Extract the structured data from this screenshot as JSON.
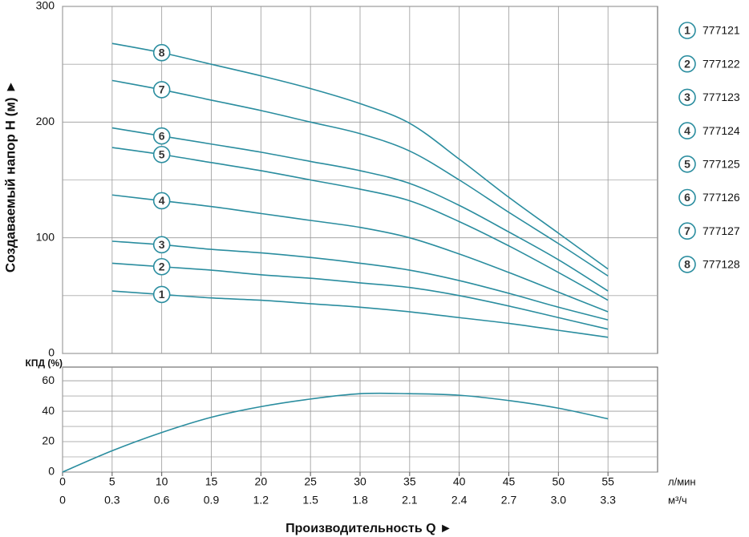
{
  "chart_data": [
    {
      "type": "line",
      "ylabel": "Создаваемый напор H (м) ►",
      "x": [
        5,
        10,
        15,
        20,
        25,
        30,
        35,
        40,
        45,
        50,
        55
      ],
      "xlim": [
        0,
        60
      ],
      "ylim": [
        0,
        300
      ],
      "yticks": [
        0,
        100,
        200,
        300
      ],
      "yminor": [
        50,
        150,
        250
      ],
      "marker_x": 10,
      "series": [
        {
          "name": "777121",
          "label": "1",
          "color": "#2a8d9f",
          "values": [
            54,
            51,
            48,
            46,
            43,
            40,
            36,
            31,
            26,
            20,
            14
          ]
        },
        {
          "name": "777122",
          "label": "2",
          "color": "#2a8d9f",
          "values": [
            78,
            75,
            72,
            68,
            65,
            61,
            57,
            50,
            41,
            31,
            21
          ]
        },
        {
          "name": "777123",
          "label": "3",
          "color": "#2a8d9f",
          "values": [
            97,
            94,
            90,
            87,
            83,
            78,
            72,
            63,
            52,
            40,
            29
          ]
        },
        {
          "name": "777124",
          "label": "4",
          "color": "#2a8d9f",
          "values": [
            137,
            132,
            127,
            121,
            115,
            109,
            100,
            86,
            70,
            53,
            36
          ]
        },
        {
          "name": "777125",
          "label": "5",
          "color": "#2a8d9f",
          "values": [
            178,
            172,
            165,
            158,
            150,
            142,
            132,
            114,
            93,
            70,
            46
          ]
        },
        {
          "name": "777126",
          "label": "6",
          "color": "#2a8d9f",
          "values": [
            195,
            188,
            181,
            174,
            166,
            158,
            147,
            128,
            105,
            81,
            54
          ]
        },
        {
          "name": "777127",
          "label": "7",
          "color": "#2a8d9f",
          "values": [
            236,
            228,
            219,
            210,
            200,
            190,
            175,
            150,
            122,
            95,
            67
          ]
        },
        {
          "name": "777128",
          "label": "8",
          "color": "#2a8d9f",
          "values": [
            268,
            260,
            250,
            240,
            229,
            216,
            199,
            168,
            135,
            104,
            73
          ]
        }
      ]
    },
    {
      "type": "line",
      "ylabel": "КПД (%)",
      "xlabel": "Производительность Q ►",
      "x": [
        0,
        5,
        10,
        15,
        20,
        25,
        30,
        35,
        40,
        45,
        50,
        55
      ],
      "values": [
        0,
        14,
        26,
        36,
        43,
        48,
        51.5,
        51.5,
        50.5,
        47,
        42,
        35
      ],
      "color": "#2a8d9f",
      "xlim": [
        0,
        60
      ],
      "xticks": [
        0,
        5,
        10,
        15,
        20,
        25,
        30,
        35,
        40,
        45,
        50,
        55
      ],
      "xunit": "л/мин",
      "x2lim": [
        0,
        3.6
      ],
      "x2ticks": [
        0,
        0.3,
        0.6,
        0.9,
        1.2,
        1.5,
        1.8,
        2.1,
        2.4,
        2.7,
        {
          "value": 3,
          "label": "3.0"
        },
        3.3
      ],
      "x2unit": "м³/ч",
      "ylim": [
        0,
        69
      ],
      "yticks": [
        0,
        20,
        40,
        60
      ],
      "yminor": [
        10,
        30,
        50
      ]
    }
  ]
}
